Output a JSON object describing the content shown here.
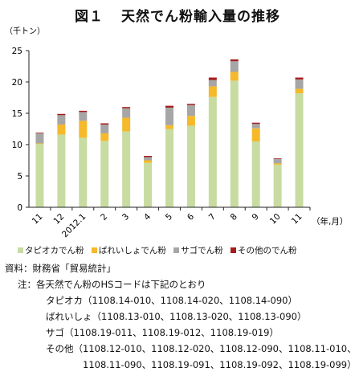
{
  "title": {
    "figure": "図１",
    "text": "天然でん粉輸入量の推移"
  },
  "chart_data": {
    "type": "bar",
    "stacked": true,
    "ylabel": "（千トン）",
    "xlabel": "（年,月）",
    "ylim": [
      0,
      25
    ],
    "yticks": [
      0,
      5,
      10,
      15,
      20,
      25
    ],
    "categories": [
      "11",
      "12",
      "2012.1",
      "2",
      "3",
      "4",
      "5",
      "6",
      "7",
      "8",
      "9",
      "10",
      "11"
    ],
    "series": [
      {
        "name": "タピオカでん粉",
        "color": "#c8dca2",
        "values": [
          10.1,
          11.6,
          11.1,
          10.6,
          12.1,
          7.1,
          12.5,
          13.0,
          17.6,
          20.2,
          10.5,
          6.8,
          18.2
        ]
      },
      {
        "name": "ばれいしょでん粉",
        "color": "#f5b92b",
        "values": [
          0.1,
          1.6,
          2.7,
          1.2,
          2.2,
          0.4,
          0.6,
          1.6,
          1.7,
          1.4,
          2.1,
          0.2,
          0.7
        ]
      },
      {
        "name": "サゴでん粉",
        "color": "#a6a6a6",
        "values": [
          1.6,
          1.5,
          1.4,
          1.4,
          1.5,
          0.5,
          2.8,
          1.7,
          1.0,
          1.7,
          0.7,
          0.7,
          1.5
        ]
      },
      {
        "name": "その他のでん粉",
        "color": "#a61c1c",
        "values": [
          0.1,
          0.2,
          0.2,
          0.2,
          0.2,
          0.2,
          0.3,
          0.2,
          0.4,
          0.3,
          0.2,
          0.1,
          0.3
        ]
      }
    ],
    "grid": false,
    "legend_position": "bottom"
  },
  "notes": {
    "source_label": "資料：",
    "source_text": "財務省「貿易統計」",
    "note_label": "注：",
    "note_text": "各天然でん粉のHSコードは下記のとおり",
    "codes": [
      {
        "name": "タピオカ",
        "codes": "（1108.14-010、1108.14-020、1108.14-090）"
      },
      {
        "name": "ばれいしょ",
        "codes": "（1108.13-010、1108.13-020、1108.13-090）"
      },
      {
        "name": "サゴ",
        "codes": "（1108.19-011、1108.19-012、1108.19-019）"
      },
      {
        "name": "その他",
        "codes": "（1108.12-010、1108.12-020、1108.12-090、1108.11-010、"
      }
    ],
    "codes_continued": "1108.11-090、1108.19-091、1108.19-092、1108.19-099）"
  }
}
